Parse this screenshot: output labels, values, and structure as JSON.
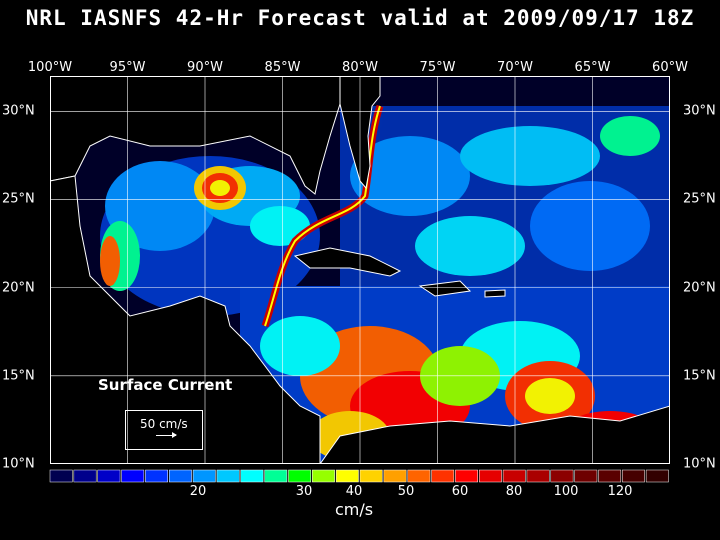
{
  "title": "NRL IASNFS  42-Hr Forecast valid at 2009/09/17 18Z",
  "axes": {
    "lon_labels": [
      "100°W",
      "95°W",
      "90°W",
      "85°W",
      "80°W",
      "75°W",
      "70°W",
      "65°W",
      "60°W"
    ],
    "lat_labels": [
      "30°N",
      "25°N",
      "20°N",
      "15°N",
      "10°N"
    ]
  },
  "map": {
    "extent": {
      "lon_min": -100,
      "lon_max": -60,
      "lat_min": 10,
      "lat_max": 32
    },
    "gridlines": true
  },
  "legend": {
    "label": "Surface Current",
    "reference_text": "50 cm/s"
  },
  "colorbar": {
    "units": "cm/s",
    "tick_labels": [
      "20",
      "30",
      "40",
      "50",
      "60",
      "80",
      "100",
      "120"
    ],
    "colors": [
      "#000050",
      "#00008c",
      "#0000c8",
      "#0000ff",
      "#0032ff",
      "#0064ff",
      "#0096ff",
      "#00c8ff",
      "#00ffff",
      "#00ff96",
      "#00ff00",
      "#96ff00",
      "#ffff00",
      "#ffd200",
      "#ffa000",
      "#ff6400",
      "#ff3200",
      "#ff0000",
      "#e60000",
      "#c80000",
      "#aa0000",
      "#8c0000",
      "#6e0000",
      "#5a0000",
      "#460000",
      "#320000"
    ]
  },
  "colors": {
    "background": "#000000",
    "land": "#000000",
    "contour": "#b4b4b4"
  }
}
